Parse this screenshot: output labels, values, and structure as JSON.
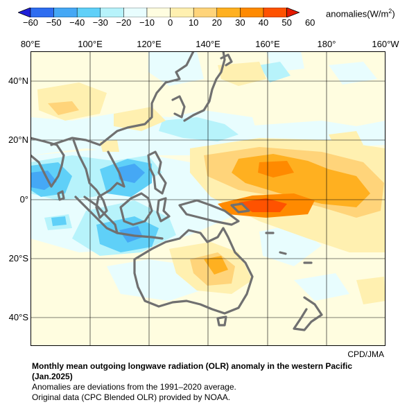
{
  "colorbar": {
    "unit_text": "anomalies(W/m",
    "unit_sup": "2",
    "unit_close": ")",
    "ticks": [
      "−60",
      "−50",
      "−40",
      "−30",
      "−20",
      "−10",
      "0",
      "10",
      "20",
      "30",
      "40",
      "50",
      "60"
    ],
    "colors": [
      "#1f1fd8",
      "#2e6df0",
      "#45a8f5",
      "#5fd0f8",
      "#b7f3fb",
      "#e8fdfe",
      "#fffde0",
      "#fff0b0",
      "#ffd47a",
      "#ffb020",
      "#ff8a00",
      "#ff5200",
      "#e51a00"
    ]
  },
  "axes": {
    "lon_labels": [
      "80°E",
      "100°E",
      "120°E",
      "140°E",
      "160°E",
      "180°",
      "160°W"
    ],
    "lat_labels": [
      "40°N",
      "20°N",
      "0°",
      "20°S",
      "40°S"
    ]
  },
  "source": "CPD/JMA",
  "caption": {
    "title_line1": "Monthly mean outgoing longwave radiation (OLR) anomaly in the western Pacific",
    "title_line2": "(Jan.2025)",
    "note1": "Anomalies are deviations from the 1991–2020 average.",
    "note2": "Original data (CPC Blended OLR) provided by NOAA."
  }
}
